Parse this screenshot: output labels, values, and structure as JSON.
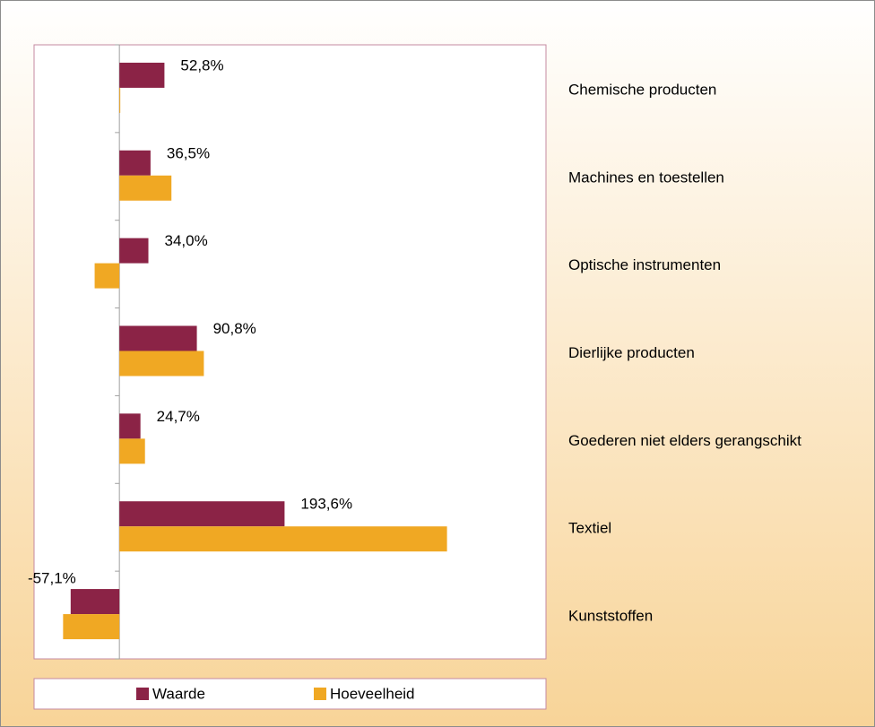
{
  "chart_data": {
    "type": "hbar",
    "categories": [
      "Chemische producten",
      "Machines en toestellen",
      "Optische instrumenten",
      "Dierlijke producten",
      "Goederen niet elders gerangschikt",
      "Textiel",
      "Kunststoffen"
    ],
    "series": [
      {
        "name": "Waarde",
        "color": "#8b2346",
        "values": [
          52.8,
          36.5,
          34.0,
          90.8,
          24.7,
          193.6,
          -57.1
        ],
        "value_labels": [
          "52,8%",
          "36,5%",
          "34,0%",
          "90,8%",
          "24,7%",
          "193,6%",
          "-57,1%"
        ]
      },
      {
        "name": "Hoeveelheid",
        "color": "#f0a823",
        "values": [
          1,
          61,
          -29,
          99,
          30,
          384,
          -66
        ]
      }
    ],
    "xlim": [
      -100,
      500
    ]
  }
}
